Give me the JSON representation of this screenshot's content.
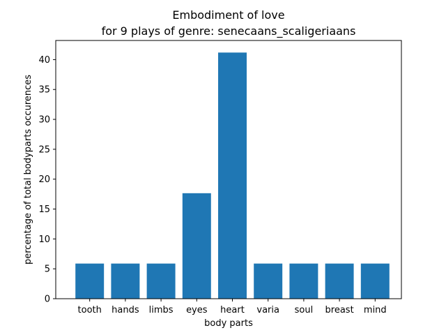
{
  "chart_data": {
    "type": "bar",
    "title": "Embodiment of love",
    "subtitle": "for 9 plays of genre: senecaans_scaligeriaans",
    "xlabel": "body parts",
    "ylabel": "percentage of total bodyparts occurences",
    "categories": [
      "tooth",
      "hands",
      "limbs",
      "eyes",
      "heart",
      "varia",
      "soul",
      "breast",
      "mind"
    ],
    "values": [
      5.88,
      5.88,
      5.88,
      17.65,
      41.18,
      5.88,
      5.88,
      5.88,
      5.88
    ],
    "ylim": [
      0,
      43.2
    ],
    "yticks": [
      0,
      5,
      10,
      15,
      20,
      25,
      30,
      35,
      40
    ],
    "bar_color": "#1f77b4",
    "grid": false,
    "legend": "none"
  }
}
